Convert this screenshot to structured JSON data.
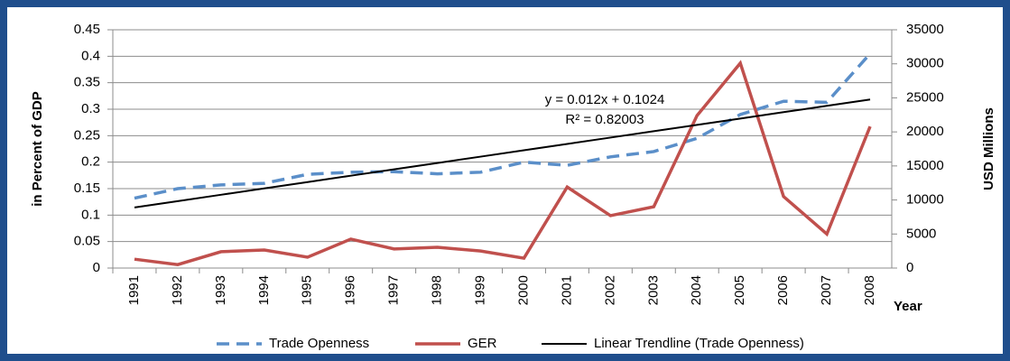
{
  "chart_data": {
    "type": "line",
    "y_label": "in Percent of GDP",
    "y2_label": "USD Millions",
    "x_label": "Year",
    "categories": [
      "1991",
      "1992",
      "1993",
      "1994",
      "1995",
      "1996",
      "1997",
      "1998",
      "1999",
      "2000",
      "2001",
      "2002",
      "2003",
      "2004",
      "2005",
      "2006",
      "2007",
      "2008"
    ],
    "series": [
      {
        "name": "Trade Openness",
        "color": "#5b8fc9",
        "dashed": true,
        "values": [
          0.132,
          0.15,
          0.157,
          0.16,
          0.177,
          0.181,
          0.182,
          0.178,
          0.181,
          0.2,
          0.194,
          0.21,
          0.22,
          0.245,
          0.29,
          0.315,
          0.313,
          0.405
        ]
      },
      {
        "name": "GER",
        "color": "#c0504d",
        "axis": "y2",
        "values": [
          1300,
          500,
          2400,
          2650,
          1600,
          4250,
          2800,
          3050,
          2500,
          1450,
          11900,
          7700,
          9000,
          22400,
          30100,
          10500,
          5000,
          20800
        ]
      },
      {
        "name": "Linear Trendline (Trade Openness)",
        "color": "#000000",
        "values": [
          0.1144,
          0.1264,
          0.1384,
          0.1504,
          0.1624,
          0.1744,
          0.1864,
          0.1984,
          0.2104,
          0.2224,
          0.2344,
          0.2464,
          0.2584,
          0.2704,
          0.2824,
          0.2944,
          0.3064,
          0.3184
        ]
      }
    ],
    "annotations": [
      "y = 0.012x + 0.1024",
      "R² = 0.82003"
    ],
    "ylim": [
      0,
      0.45
    ],
    "yticks": [
      0,
      0.05,
      0.1,
      0.15,
      0.2,
      0.25,
      0.3,
      0.35,
      0.4,
      0.45
    ],
    "y2lim": [
      0,
      35000
    ],
    "y2ticks": [
      0,
      5000,
      10000,
      15000,
      20000,
      25000,
      30000,
      35000
    ],
    "grid": true,
    "legend": "bottom"
  }
}
